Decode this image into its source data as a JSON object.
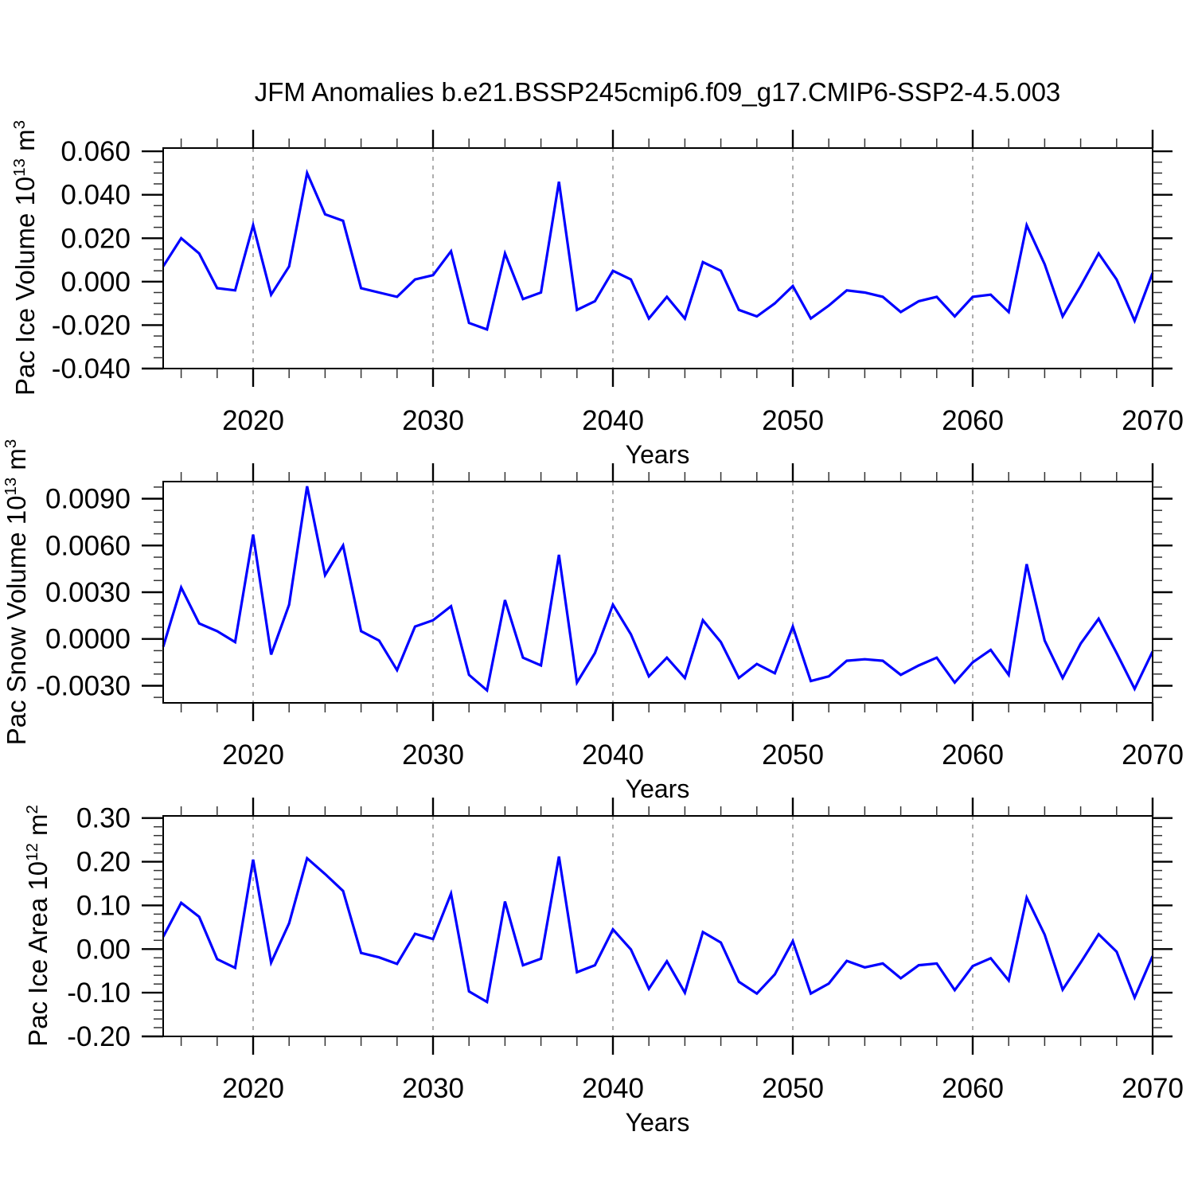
{
  "title": "JFM Anomalies b.e21.BSSP245cmip6.f09_g17.CMIP6-SSP2-4.5.003",
  "colors": {
    "line": "#0000ff",
    "grid": "#999999",
    "axis": "#000000",
    "minor_tick": "#333333"
  },
  "years": [
    2015,
    2016,
    2017,
    2018,
    2019,
    2020,
    2021,
    2022,
    2023,
    2024,
    2025,
    2026,
    2027,
    2028,
    2029,
    2030,
    2031,
    2032,
    2033,
    2034,
    2035,
    2036,
    2037,
    2038,
    2039,
    2040,
    2041,
    2042,
    2043,
    2044,
    2045,
    2046,
    2047,
    2048,
    2049,
    2050,
    2051,
    2052,
    2053,
    2054,
    2055,
    2056,
    2057,
    2058,
    2059,
    2060,
    2061,
    2062,
    2063,
    2064,
    2065,
    2066,
    2067,
    2068,
    2069,
    2070
  ],
  "chart_data": [
    {
      "type": "line",
      "ylabel": "Pac Ice Volume 10^13 m^3",
      "ylabel_parts": {
        "p1": "Pac Ice Volume 10",
        "sup1": "13",
        "p2": " m",
        "sup2": "3"
      },
      "xlabel": "Years",
      "x_ref": "years",
      "values": [
        0.007,
        0.02,
        0.013,
        -0.003,
        -0.004,
        0.026,
        -0.006,
        0.007,
        0.05,
        0.031,
        0.028,
        -0.003,
        -0.005,
        -0.007,
        0.001,
        0.003,
        0.014,
        -0.019,
        -0.022,
        0.013,
        -0.008,
        -0.005,
        0.046,
        -0.013,
        -0.009,
        0.005,
        0.001,
        -0.017,
        -0.007,
        -0.017,
        0.009,
        0.005,
        -0.013,
        -0.016,
        -0.01,
        -0.002,
        -0.017,
        -0.011,
        -0.004,
        -0.005,
        -0.007,
        -0.014,
        -0.009,
        -0.007,
        -0.016,
        -0.007,
        -0.006,
        -0.014,
        0.026,
        0.008,
        -0.016,
        -0.002,
        0.013,
        0.001,
        -0.018,
        0.004
      ],
      "xlim": [
        2015,
        2070
      ],
      "ylim": [
        -0.04,
        0.0615
      ],
      "x_major_ticks": [
        2020,
        2030,
        2040,
        2050,
        2060,
        2070
      ],
      "x_major_labels": [
        "2020",
        "2030",
        "2040",
        "2050",
        "2060",
        "2070"
      ],
      "x_minor_step": 2,
      "y_major_ticks": [
        -0.04,
        -0.02,
        0.0,
        0.02,
        0.04,
        0.06
      ],
      "y_major_labels": [
        "-0.040",
        "-0.020",
        "0.000",
        "0.020",
        "0.040",
        "0.060"
      ],
      "y_minor": {
        "start": -0.04,
        "step": 0.005,
        "end": 0.0615
      },
      "grid_x": [
        2020,
        2030,
        2040,
        2050,
        2060
      ],
      "grid": "vertical-dashed"
    },
    {
      "type": "line",
      "ylabel": "Pac Snow Volume 10^13 m^3",
      "ylabel_parts": {
        "p1": "Pac Snow Volume 10",
        "sup1": "13",
        "p2": " m",
        "sup2": "3"
      },
      "xlabel": "Years",
      "x_ref": "years",
      "values": [
        -0.0005,
        0.0033,
        0.001,
        0.0005,
        -0.0002,
        0.0067,
        -0.001,
        0.0022,
        0.0098,
        0.0041,
        0.006,
        0.0005,
        -0.0001,
        -0.002,
        0.0008,
        0.0012,
        0.0021,
        -0.0023,
        -0.0033,
        0.0025,
        -0.0012,
        -0.0017,
        0.0054,
        -0.0028,
        -0.0009,
        0.0022,
        0.0003,
        -0.0024,
        -0.0012,
        -0.0025,
        0.0012,
        -0.0002,
        -0.0025,
        -0.0016,
        -0.0022,
        0.0008,
        -0.0027,
        -0.0024,
        -0.0014,
        -0.0013,
        -0.0014,
        -0.0023,
        -0.0017,
        -0.0012,
        -0.0028,
        -0.0015,
        -0.0007,
        -0.0023,
        0.0048,
        -0.0001,
        -0.0025,
        -0.0003,
        0.0013,
        -0.0009,
        -0.0032,
        -0.0008
      ],
      "xlim": [
        2015,
        2070
      ],
      "ylim": [
        -0.0041,
        0.0101
      ],
      "x_major_ticks": [
        2020,
        2030,
        2040,
        2050,
        2060,
        2070
      ],
      "x_major_labels": [
        "2020",
        "2030",
        "2040",
        "2050",
        "2060",
        "2070"
      ],
      "x_minor_step": 2,
      "y_major_ticks": [
        -0.003,
        0.0,
        0.003,
        0.006,
        0.009
      ],
      "y_major_labels": [
        "-0.0030",
        "0.0000",
        "0.0030",
        "0.0060",
        "0.0090"
      ],
      "y_minor": {
        "start": -0.00375,
        "step": 0.00075,
        "end": 0.0101
      },
      "grid_x": [
        2020,
        2030,
        2040,
        2050,
        2060
      ],
      "grid": "vertical-dashed"
    },
    {
      "type": "line",
      "ylabel": "Pac Ice Area 10^12 m^2",
      "ylabel_parts": {
        "p1": "Pac Ice Area 10",
        "sup1": "12",
        "p2": " m",
        "sup2": "2"
      },
      "xlabel": "Years",
      "x_ref": "years",
      "values": [
        0.028,
        0.106,
        0.074,
        -0.023,
        -0.043,
        0.205,
        -0.031,
        0.059,
        0.208,
        0.172,
        0.133,
        -0.009,
        -0.019,
        -0.034,
        0.035,
        0.023,
        0.127,
        -0.097,
        -0.121,
        0.109,
        -0.037,
        -0.022,
        0.212,
        -0.053,
        -0.037,
        0.045,
        -0.001,
        -0.091,
        -0.028,
        -0.1,
        0.039,
        0.015,
        -0.075,
        -0.102,
        -0.058,
        0.018,
        -0.102,
        -0.079,
        -0.027,
        -0.042,
        -0.033,
        -0.067,
        -0.037,
        -0.033,
        -0.094,
        -0.039,
        -0.021,
        -0.072,
        0.118,
        0.033,
        -0.093,
        -0.031,
        0.034,
        -0.006,
        -0.111,
        -0.016
      ],
      "xlim": [
        2015,
        2070
      ],
      "ylim": [
        -0.2,
        0.305
      ],
      "x_major_ticks": [
        2020,
        2030,
        2040,
        2050,
        2060,
        2070
      ],
      "x_major_labels": [
        "2020",
        "2030",
        "2040",
        "2050",
        "2060",
        "2070"
      ],
      "x_minor_step": 2,
      "y_major_ticks": [
        -0.2,
        -0.1,
        0.0,
        0.1,
        0.2,
        0.3
      ],
      "y_major_labels": [
        "-0.20",
        "-0.10",
        "0.00",
        "0.10",
        "0.20",
        "0.30"
      ],
      "y_minor": {
        "start": -0.2,
        "step": 0.02,
        "end": 0.305
      },
      "grid_x": [
        2020,
        2030,
        2040,
        2050,
        2060
      ],
      "grid": "vertical-dashed"
    }
  ]
}
